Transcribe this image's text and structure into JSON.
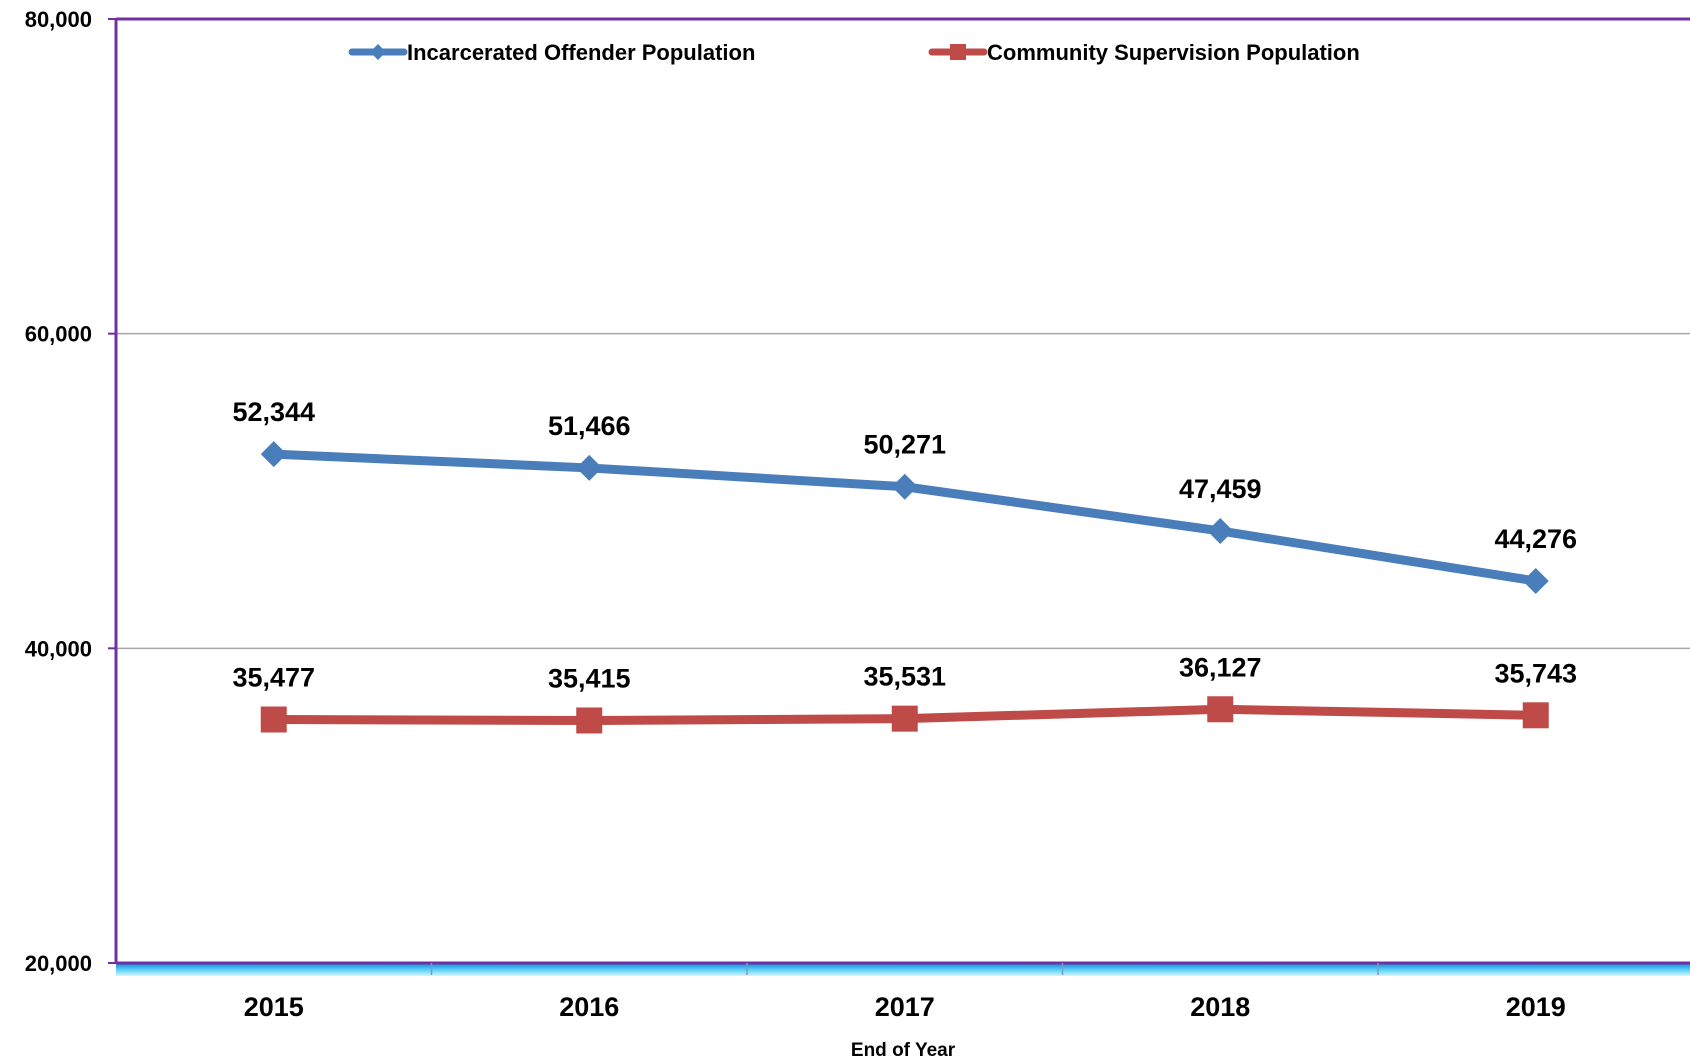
{
  "chart_data": {
    "type": "line",
    "title": "",
    "xlabel": "End of Year",
    "ylabel": "",
    "ylim": [
      20000,
      80000
    ],
    "yticks": [
      20000,
      40000,
      60000,
      80000
    ],
    "ytick_labels": [
      "20,000",
      "40,000",
      "60,000",
      "80,000"
    ],
    "grid": true,
    "legend_position": "top",
    "categories": [
      "2015",
      "2016",
      "2017",
      "2018",
      "2019"
    ],
    "series": [
      {
        "name": "Incarcerated Offender Population",
        "color": "#4a7ebb",
        "marker": "diamond",
        "values": [
          52344,
          51466,
          50271,
          47459,
          44276
        ],
        "labels": [
          "52,344",
          "51,466",
          "50,271",
          "47,459",
          "44,276"
        ]
      },
      {
        "name": "Community Supervision Population",
        "color": "#be4b48",
        "marker": "square",
        "values": [
          35477,
          35415,
          35531,
          36127,
          35743
        ],
        "labels": [
          "35,477",
          "35,415",
          "35,531",
          "36,127",
          "35,743"
        ]
      }
    ],
    "colors": {
      "plot_border": "#7030a0",
      "gridline": "#a6a6a6",
      "baseline_glow": "#3fc6f0"
    }
  }
}
